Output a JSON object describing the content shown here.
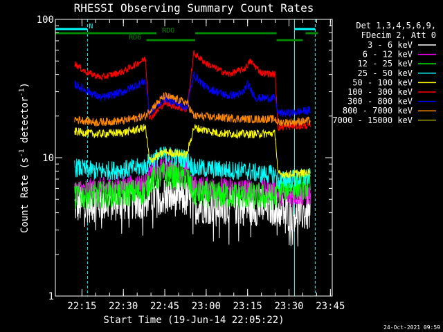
{
  "chart_data": {
    "type": "line",
    "title": "RHESSI Observing Summary Count Rates",
    "xlabel": "Start Time (19-Jun-14 22:05:22)",
    "ylabel": "Count Rate (s",
    "ylabel_sup": "-1",
    "ylabel_tail": " detector",
    "ylabel_tail_sup": "-1",
    "ylabel_close": ")",
    "y_scale": "log",
    "ylim": [
      1,
      100
    ],
    "xlim": [
      "22:05:22",
      "23:45:40"
    ],
    "x_ticks": [
      "22:15",
      "22:30",
      "22:45",
      "23:00",
      "23:15",
      "23:30",
      "23:45"
    ],
    "y_ticks": [
      "1",
      "10",
      "100"
    ],
    "grid": false,
    "legend_position": "top-right",
    "legend_header": [
      "Det 1,3,4,5,6,9,",
      "FDecim 2, Att 0"
    ],
    "flags": [
      {
        "label": "N",
        "color": "#00ffff",
        "segments": [
          [
            "22:05:22",
            "22:17:00"
          ],
          [
            "23:32:00",
            "23:39:30"
          ]
        ]
      },
      {
        "label": "RDO",
        "color": "#008800",
        "segments": [
          [
            "22:05:22",
            "22:42:00"
          ],
          [
            "22:56:00",
            "23:25:30"
          ],
          [
            "23:36:00",
            "23:40:30"
          ]
        ]
      },
      {
        "label": "RD6",
        "color": "#008800",
        "segments": [
          [
            "22:38:20",
            "22:56:00"
          ],
          [
            "23:25:30",
            "23:35:00"
          ]
        ]
      }
    ],
    "boundaries": [
      {
        "time": "22:05:22",
        "color": "#00ffff",
        "style": "solid"
      },
      {
        "time": "22:17:00",
        "color": "#00ffff",
        "style": "dashed"
      },
      {
        "time": "23:32:00",
        "color": "#00ffff",
        "style": "solid"
      },
      {
        "time": "23:39:30",
        "color": "#00ffff",
        "style": "dashed"
      }
    ],
    "data_start": "22:12:20",
    "data_end": "23:37:45",
    "series": [
      {
        "name": "3 - 6 keV",
        "color": "#ffffff",
        "x": [
          "22:12:20",
          "22:20:00",
          "22:30:00",
          "22:38:00",
          "22:39:30",
          "22:45:00",
          "22:53:00",
          "22:55:30",
          "23:05:00",
          "23:15:00",
          "23:25:00",
          "23:26:00",
          "23:30:00",
          "23:37:45"
        ],
        "values": [
          4.5,
          4.7,
          4.8,
          5.0,
          5.3,
          5.3,
          5.0,
          4.6,
          4.5,
          4.4,
          4.4,
          4.2,
          4.0,
          4.0
        ]
      },
      {
        "name": "6 - 12 keV",
        "color": "#ff00ff",
        "x": [
          "22:12:20",
          "22:20:00",
          "22:30:00",
          "22:38:00",
          "22:39:30",
          "22:45:00",
          "22:53:00",
          "22:55:30",
          "23:05:00",
          "23:15:00",
          "23:25:00",
          "23:26:00",
          "23:30:00",
          "23:37:45"
        ],
        "values": [
          5.8,
          6.0,
          6.2,
          6.5,
          7.5,
          8.5,
          8.0,
          6.2,
          6.0,
          5.9,
          5.8,
          5.4,
          5.3,
          5.4
        ]
      },
      {
        "name": "12 - 25 keV",
        "color": "#00ff00",
        "x": [
          "22:12:20",
          "22:20:00",
          "22:30:00",
          "22:38:00",
          "22:39:30",
          "22:45:00",
          "22:53:00",
          "22:55:30",
          "23:05:00",
          "23:15:00",
          "23:25:00",
          "23:26:00",
          "23:30:00",
          "23:37:45"
        ],
        "values": [
          5.3,
          5.4,
          5.5,
          5.7,
          6.8,
          7.6,
          7.2,
          5.5,
          5.4,
          5.3,
          5.2,
          5.8,
          6.2,
          6.2
        ]
      },
      {
        "name": "25 - 50 keV",
        "color": "#00ffff",
        "x": [
          "22:12:20",
          "22:20:00",
          "22:30:00",
          "22:38:00",
          "22:39:30",
          "22:45:00",
          "22:53:00",
          "22:55:30",
          "23:05:00",
          "23:15:00",
          "23:20:00",
          "23:25:00",
          "23:26:00",
          "23:30:00",
          "23:37:45"
        ],
        "values": [
          8.5,
          8.0,
          8.2,
          8.6,
          9.5,
          10.5,
          9.8,
          8.4,
          8.2,
          8.0,
          7.6,
          7.6,
          6.8,
          7.0,
          7.2
        ]
      },
      {
        "name": "50 - 100 keV",
        "color": "#ffff00",
        "x": [
          "22:12:20",
          "22:20:00",
          "22:30:00",
          "22:38:00",
          "22:39:30",
          "22:45:00",
          "22:53:00",
          "22:55:30",
          "23:05:00",
          "23:15:00",
          "23:25:00",
          "23:26:00",
          "23:30:00",
          "23:37:45"
        ],
        "values": [
          15.5,
          14.8,
          15.2,
          16.5,
          9.5,
          11.0,
          10.5,
          16.5,
          15.0,
          14.8,
          15.0,
          7.6,
          7.6,
          7.8
        ]
      },
      {
        "name": "100 - 300 keV",
        "color": "#ff0000",
        "x": [
          "22:12:20",
          "22:16:00",
          "22:22:00",
          "22:30:00",
          "22:38:00",
          "22:39:30",
          "22:45:00",
          "22:53:00",
          "22:55:30",
          "23:00:00",
          "23:08:00",
          "23:14:00",
          "23:16:00",
          "23:20:00",
          "23:25:00",
          "23:26:00",
          "23:30:00",
          "23:37:45"
        ],
        "values": [
          48,
          42,
          38,
          42,
          52,
          19,
          25,
          22,
          57,
          48,
          40,
          44,
          50,
          41,
          40,
          16.5,
          16.8,
          17
        ]
      },
      {
        "name": "300 - 800 keV",
        "color": "#0000ff",
        "x": [
          "22:12:20",
          "22:16:00",
          "22:22:00",
          "22:30:00",
          "22:38:00",
          "22:39:30",
          "22:45:00",
          "22:53:00",
          "22:55:30",
          "23:00:00",
          "23:08:00",
          "23:13:00",
          "23:15:00",
          "23:18:00",
          "23:25:00",
          "23:26:00",
          "23:30:00",
          "23:37:45"
        ],
        "values": [
          34,
          31,
          27,
          30,
          36,
          21,
          27,
          23,
          40,
          32,
          28,
          29,
          34,
          27,
          27,
          21,
          21,
          22
        ]
      },
      {
        "name": "800 - 7000 keV",
        "color": "#ff8800",
        "x": [
          "22:12:20",
          "22:20:00",
          "22:30:00",
          "22:38:00",
          "22:39:30",
          "22:45:00",
          "22:53:00",
          "22:55:30",
          "23:05:00",
          "23:15:00",
          "23:25:00",
          "23:26:00",
          "23:30:00",
          "23:37:45"
        ],
        "values": [
          19,
          18,
          18.5,
          20,
          22,
          28,
          25,
          20,
          19.5,
          19,
          19,
          18,
          18,
          18.5
        ]
      },
      {
        "name": "7000 - 15000 keV",
        "color": "#999900",
        "x": [],
        "values": []
      }
    ]
  },
  "footer": {
    "date_stamp": "24-Oct-2021 09:59"
  }
}
